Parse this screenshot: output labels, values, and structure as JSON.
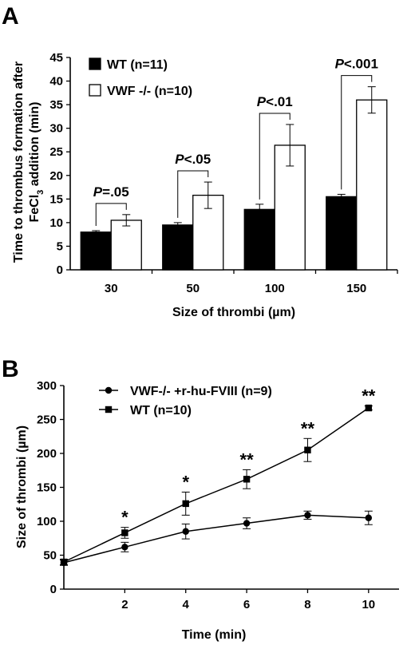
{
  "chart_data": [
    {
      "panel": "A",
      "type": "bar",
      "xlabel": "Size of thrombi (µm)",
      "ylabel_line1": "Time to thrombus formation after",
      "ylabel_line2_pre": "FeCl",
      "ylabel_line2_sub": "3",
      "ylabel_line2_post": " addition (min)",
      "ylim": [
        0,
        45
      ],
      "yticks": [
        0,
        5,
        10,
        15,
        20,
        25,
        30,
        35,
        40,
        45
      ],
      "categories": [
        "30",
        "50",
        "100",
        "150"
      ],
      "legend_position": "top-left",
      "series": [
        {
          "name": "WT (n=11)",
          "color": "#000000",
          "values": [
            8.0,
            9.5,
            12.8,
            15.5
          ],
          "errors": [
            0.3,
            0.5,
            1.1,
            0.5
          ]
        },
        {
          "name": "VWF -/- (n=10)",
          "color": "#ffffff",
          "values": [
            10.5,
            15.8,
            26.4,
            36.0
          ],
          "errors": [
            1.2,
            2.8,
            4.4,
            2.8
          ]
        }
      ],
      "annotations": [
        {
          "category": "30",
          "prefix": "P",
          "text": "=.05"
        },
        {
          "category": "50",
          "prefix": "P",
          "text": "<.05"
        },
        {
          "category": "100",
          "prefix": "P",
          "text": "<.01"
        },
        {
          "category": "150",
          "prefix": "P",
          "text": "<.001"
        }
      ]
    },
    {
      "panel": "B",
      "type": "line",
      "xlabel": "Time (min)",
      "ylabel": "Size of thrombi (µm)",
      "xlim": [
        0,
        11
      ],
      "ylim": [
        0,
        300
      ],
      "xticks": [
        2,
        4,
        6,
        8,
        10
      ],
      "yticks": [
        0,
        50,
        100,
        150,
        200,
        250,
        300
      ],
      "legend_position": "top-left",
      "series": [
        {
          "name": "VWF-/- +r-hu-FVIII (n=9)",
          "marker": "circle",
          "x": [
            0,
            2,
            4,
            6,
            8,
            10
          ],
          "y": [
            39,
            62,
            85,
            97,
            109,
            105
          ],
          "errors": [
            4,
            7,
            11,
            8,
            6,
            10
          ]
        },
        {
          "name": "WT (n=10)",
          "marker": "square",
          "x": [
            0,
            2,
            4,
            6,
            8,
            10
          ],
          "y": [
            40,
            83,
            126,
            162,
            205,
            267
          ],
          "errors": [
            4,
            8,
            17,
            14,
            17,
            3
          ]
        }
      ],
      "annotations": [
        {
          "x": 2,
          "text": "*"
        },
        {
          "x": 4,
          "text": "*"
        },
        {
          "x": 6,
          "text": "**"
        },
        {
          "x": 8,
          "text": "**"
        },
        {
          "x": 10,
          "text": "**"
        }
      ]
    }
  ]
}
